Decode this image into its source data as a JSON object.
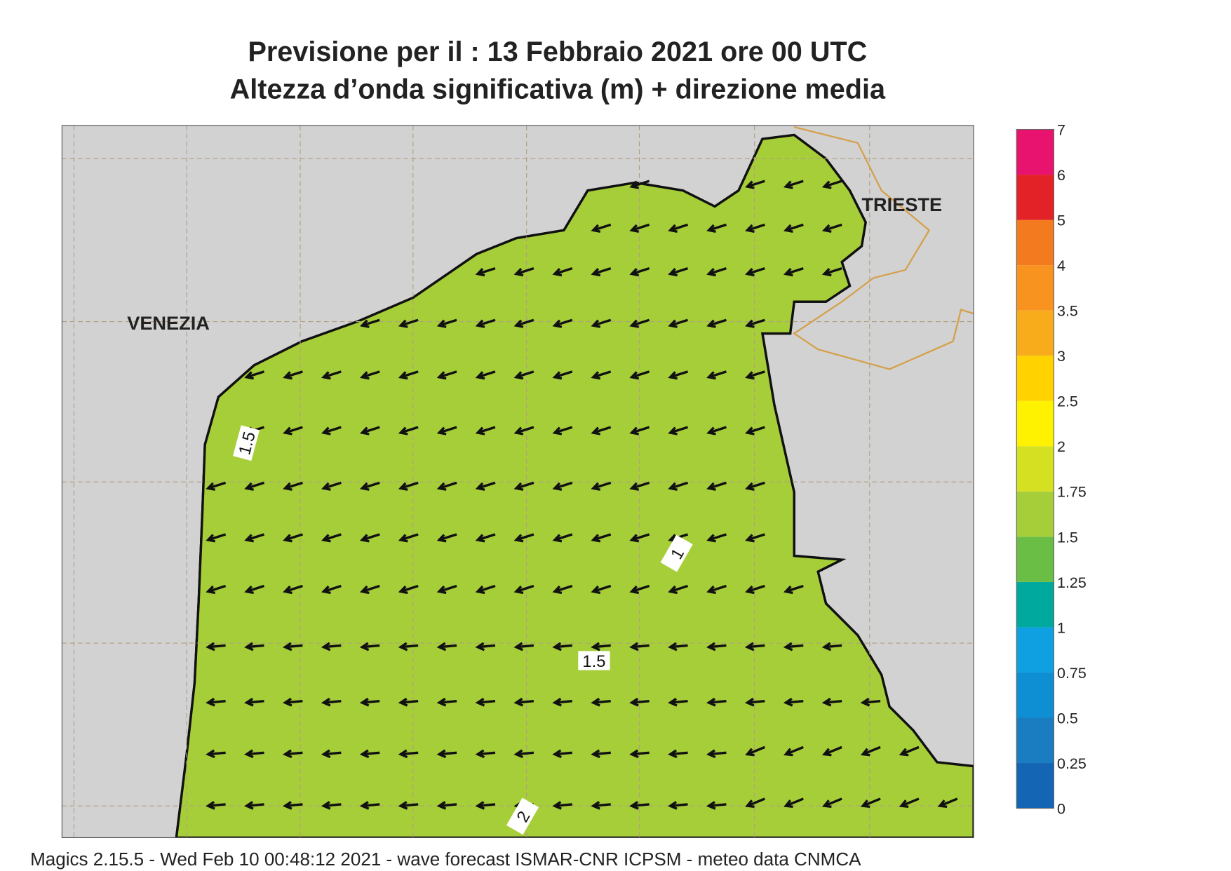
{
  "header": {
    "title_lines": [
      "Previsione per il  :  13  Febbraio 2021   ore 00 UTC",
      "Altezza d’onda significativa (m) + direzione media"
    ]
  },
  "map": {
    "places": [
      "VENEZIA",
      "TRIESTE"
    ],
    "contour_labels": [
      1.5,
      1,
      1.5,
      2
    ]
  },
  "legend": {
    "ticks": [
      0,
      0.25,
      0.5,
      0.75,
      1,
      1.25,
      1.5,
      1.75,
      2,
      2.5,
      3,
      3.5,
      4,
      5,
      6,
      7
    ],
    "colors": [
      "#1565b5",
      "#1a7cc1",
      "#0f8fd3",
      "#0ea0e0",
      "#00a99d",
      "#6abd45",
      "#a6ce39",
      "#d4e021",
      "#fff200",
      "#ffd200",
      "#f9ac1b",
      "#f7931e",
      "#f47a20",
      "#e32228",
      "#e8136e"
    ]
  },
  "footer": "Magics 2.15.5 - Wed Feb 10 00:48:12 2021 - wave forecast  ISMAR-CNR  ICPSM - meteo data   CNMCA"
}
